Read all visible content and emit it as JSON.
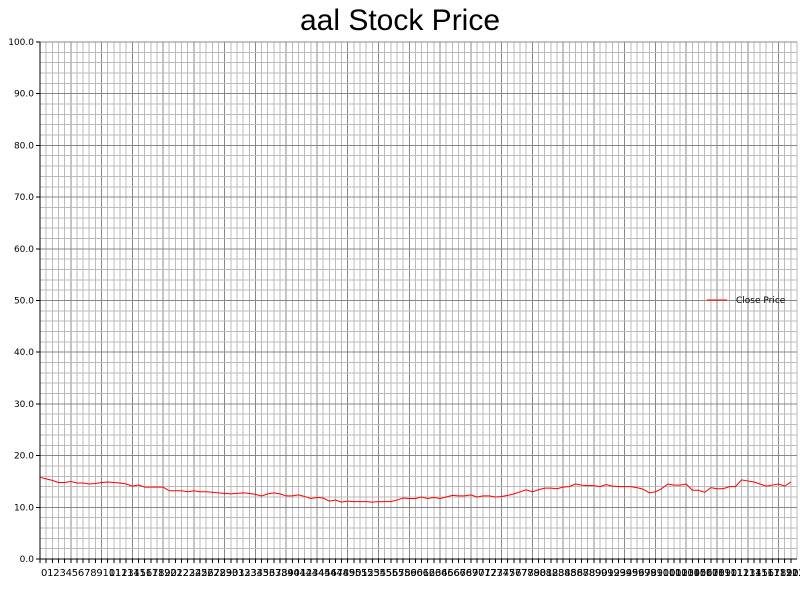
{
  "chart_data": {
    "type": "line",
    "title": "aal Stock Price",
    "xlabel": "",
    "ylabel": "",
    "ylim": [
      0,
      100
    ],
    "yticks": [
      "0.0",
      "10.0",
      "20.0",
      "30.0",
      "40.0",
      "50.0",
      "60.0",
      "70.0",
      "80.0",
      "90.0",
      "100.0"
    ],
    "grid": true,
    "legend_position": "right",
    "colors": {
      "series": "#ff0000",
      "grid_major": "#888888",
      "grid_minor": "#bbbbbb",
      "axis": "#000000"
    },
    "x": [
      0,
      1,
      2,
      3,
      4,
      5,
      6,
      7,
      8,
      9,
      10,
      11,
      12,
      13,
      14,
      15,
      16,
      17,
      18,
      19,
      20,
      21,
      22,
      23,
      24,
      25,
      26,
      27,
      28,
      29,
      30,
      31,
      32,
      33,
      34,
      35,
      36,
      37,
      38,
      39,
      40,
      41,
      42,
      43,
      44,
      45,
      46,
      47,
      48,
      49,
      50,
      51,
      52,
      53,
      54,
      55,
      56,
      57,
      58,
      59,
      60,
      61,
      62,
      63,
      64,
      65,
      66,
      67,
      68,
      69,
      70,
      71,
      72,
      73,
      74,
      75,
      76,
      77,
      78,
      79,
      80,
      81,
      82,
      83,
      84,
      85,
      86,
      87,
      88,
      89,
      90,
      91,
      92,
      93,
      94,
      95,
      96,
      97,
      98,
      99,
      100,
      101,
      102,
      103,
      104,
      105,
      106,
      107,
      108,
      109,
      110,
      111,
      112,
      113,
      114,
      115,
      116,
      117,
      118,
      119,
      120,
      121,
      122
    ],
    "series": [
      {
        "name": "Close Price",
        "values": [
          15.8,
          15.5,
          15.2,
          14.8,
          14.8,
          15.0,
          14.7,
          14.7,
          14.5,
          14.6,
          14.8,
          14.9,
          14.8,
          14.7,
          14.5,
          14.1,
          14.3,
          13.9,
          13.9,
          13.9,
          13.9,
          13.2,
          13.2,
          13.2,
          13.0,
          13.2,
          13.0,
          13.0,
          12.9,
          12.8,
          12.7,
          12.6,
          12.7,
          12.8,
          12.7,
          12.5,
          12.2,
          12.6,
          12.8,
          12.6,
          12.2,
          12.2,
          12.4,
          12.1,
          11.7,
          11.9,
          11.8,
          11.2,
          11.4,
          11.0,
          11.2,
          11.1,
          11.1,
          11.1,
          11.0,
          11.1,
          11.1,
          11.1,
          11.4,
          11.8,
          11.7,
          11.7,
          12.0,
          11.7,
          11.9,
          11.7,
          12.0,
          12.3,
          12.2,
          12.2,
          12.4,
          12.0,
          12.2,
          12.2,
          12.0,
          12.1,
          12.3,
          12.6,
          13.0,
          13.4,
          13.0,
          13.4,
          13.7,
          13.7,
          13.6,
          13.9,
          14.0,
          14.5,
          14.3,
          14.2,
          14.2,
          14.0,
          14.4,
          14.1,
          14.0,
          14.0,
          14.0,
          13.8,
          13.5,
          12.8,
          13.0,
          13.6,
          14.5,
          14.3,
          14.3,
          14.5,
          13.3,
          13.3,
          12.9,
          13.8,
          13.6,
          13.6,
          14.0,
          14.0,
          15.3,
          15.1,
          14.9,
          14.5,
          14.1,
          14.3,
          14.5,
          14.1,
          14.9
        ]
      }
    ]
  }
}
